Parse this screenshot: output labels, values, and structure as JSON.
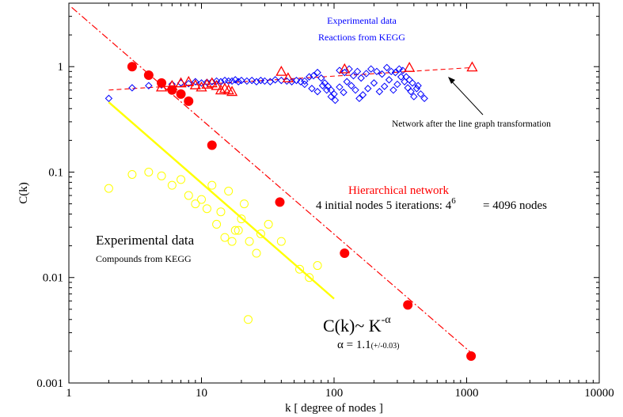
{
  "chart_data": {
    "type": "scatter",
    "xscale": "log",
    "yscale": "log",
    "xlim": [
      1,
      10000
    ],
    "ylim": [
      0.001,
      4
    ],
    "xlabel": "k [ degree of nodes ]",
    "ylabel": "C(k)",
    "x_ticks": [
      {
        "v": 1,
        "label": "1"
      },
      {
        "v": 10,
        "label": "10"
      },
      {
        "v": 100,
        "label": "100"
      },
      {
        "v": 1000,
        "label": "1000"
      },
      {
        "v": 10000,
        "label": "10000"
      }
    ],
    "y_ticks": [
      {
        "v": 0.001,
        "label": "0.001"
      },
      {
        "v": 0.01,
        "label": "0.01"
      },
      {
        "v": 0.1,
        "label": "0.1"
      },
      {
        "v": 1,
        "label": "1"
      }
    ],
    "colors": {
      "hier": "#ff0000",
      "kegg_reactions": "#0000ff",
      "compounds": "#ffff00",
      "line_graph": "#ff0000"
    },
    "series": [
      {
        "id": "hier",
        "marker": "filled-circle",
        "x": [
          3,
          4,
          5,
          6,
          7,
          8,
          12,
          39,
          120,
          360,
          1080
        ],
        "y": [
          1.0,
          0.83,
          0.7,
          0.6,
          0.55,
          0.47,
          0.18,
          0.052,
          0.017,
          0.0055,
          0.0018
        ]
      },
      {
        "id": "hier_fit",
        "style": "dash-dot",
        "x": [
          1.05,
          1100
        ],
        "y": [
          3.65,
          0.0019
        ]
      },
      {
        "id": "kegg_reactions",
        "marker": "open-diamond",
        "x": [
          2,
          3,
          4,
          5,
          6,
          7,
          8,
          9,
          10,
          11,
          12,
          13,
          14,
          15,
          16,
          17,
          18,
          19,
          20,
          22,
          24,
          26,
          28,
          30,
          33,
          36,
          40,
          44,
          48,
          52,
          56,
          60,
          65,
          70,
          75,
          80,
          85,
          90,
          95,
          100,
          110,
          120,
          130,
          140,
          150,
          160,
          175,
          190,
          210,
          230,
          250,
          270,
          290,
          310,
          330,
          350,
          370,
          390,
          420,
          450,
          480,
          60,
          68,
          75,
          82,
          88,
          95,
          102,
          110,
          118,
          125,
          135,
          145,
          155,
          165,
          180,
          200,
          220,
          240,
          260,
          280,
          300,
          320,
          340,
          360,
          380,
          400,
          430
        ],
        "y": [
          0.5,
          0.63,
          0.66,
          0.67,
          0.68,
          0.7,
          0.69,
          0.72,
          0.7,
          0.71,
          0.72,
          0.73,
          0.72,
          0.74,
          0.73,
          0.73,
          0.75,
          0.72,
          0.74,
          0.73,
          0.74,
          0.72,
          0.74,
          0.73,
          0.72,
          0.75,
          0.74,
          0.73,
          0.72,
          0.74,
          0.72,
          0.73,
          0.8,
          0.82,
          0.88,
          0.78,
          0.7,
          0.65,
          0.6,
          0.55,
          0.92,
          0.88,
          0.95,
          0.82,
          0.9,
          0.78,
          0.86,
          0.95,
          0.9,
          0.85,
          0.98,
          0.9,
          0.88,
          0.95,
          0.92,
          0.8,
          0.75,
          0.7,
          0.62,
          0.55,
          0.5,
          0.68,
          0.62,
          0.58,
          0.66,
          0.6,
          0.52,
          0.48,
          0.64,
          0.57,
          0.72,
          0.66,
          0.6,
          0.5,
          0.54,
          0.62,
          0.7,
          0.58,
          0.65,
          0.75,
          0.6,
          0.68,
          0.8,
          0.72,
          0.63,
          0.58,
          0.52,
          0.66
        ]
      },
      {
        "id": "compounds",
        "marker": "open-circle",
        "x": [
          2,
          3,
          4,
          5,
          6,
          7,
          8,
          9,
          10,
          11,
          12,
          13,
          14,
          15,
          16,
          17,
          18,
          19,
          20,
          21,
          23,
          26,
          28,
          32,
          40,
          55,
          65,
          75,
          22.5
        ],
        "y": [
          0.07,
          0.095,
          0.1,
          0.092,
          0.075,
          0.085,
          0.06,
          0.05,
          0.055,
          0.045,
          0.075,
          0.032,
          0.042,
          0.024,
          0.066,
          0.022,
          0.028,
          0.028,
          0.036,
          0.05,
          0.022,
          0.017,
          0.026,
          0.032,
          0.022,
          0.012,
          0.01,
          0.013,
          0.004
        ]
      },
      {
        "id": "compounds_fit",
        "style": "solid",
        "x": [
          2,
          100
        ],
        "y": [
          0.46,
          0.0063
        ]
      },
      {
        "id": "line_graph",
        "marker": "open-triangle",
        "x": [
          5,
          6,
          7,
          8,
          9,
          10,
          11,
          12,
          13,
          14,
          15,
          16,
          17,
          40,
          45,
          120,
          370,
          1100
        ],
        "y": [
          0.64,
          0.66,
          0.7,
          0.72,
          0.67,
          0.64,
          0.68,
          0.7,
          0.66,
          0.6,
          0.62,
          0.6,
          0.58,
          0.9,
          0.78,
          0.95,
          0.98,
          0.99
        ]
      },
      {
        "id": "line_graph_fit",
        "style": "dashed",
        "x": [
          2,
          1100
        ],
        "y": [
          0.6,
          0.98
        ]
      }
    ],
    "annotations": {
      "kegg_reactions_line1": "Experimental data",
      "kegg_reactions_line2": "Reactions from KEGG",
      "line_graph_note": "Network after the line graph transformation",
      "hier_title": "Hierarchical network",
      "hier_desc_a": "4 initial nodes 5 iterations: 4",
      "hier_desc_exp": "6",
      "hier_desc_b": "= 4096 nodes",
      "compounds_line1": "Experimental data",
      "compounds_line2": "Compounds from KEGG",
      "formula_main": "C(k)~ K",
      "formula_exp": "-α",
      "alpha_main": "α = 1.1",
      "alpha_err": "(+/-0.03)"
    }
  }
}
